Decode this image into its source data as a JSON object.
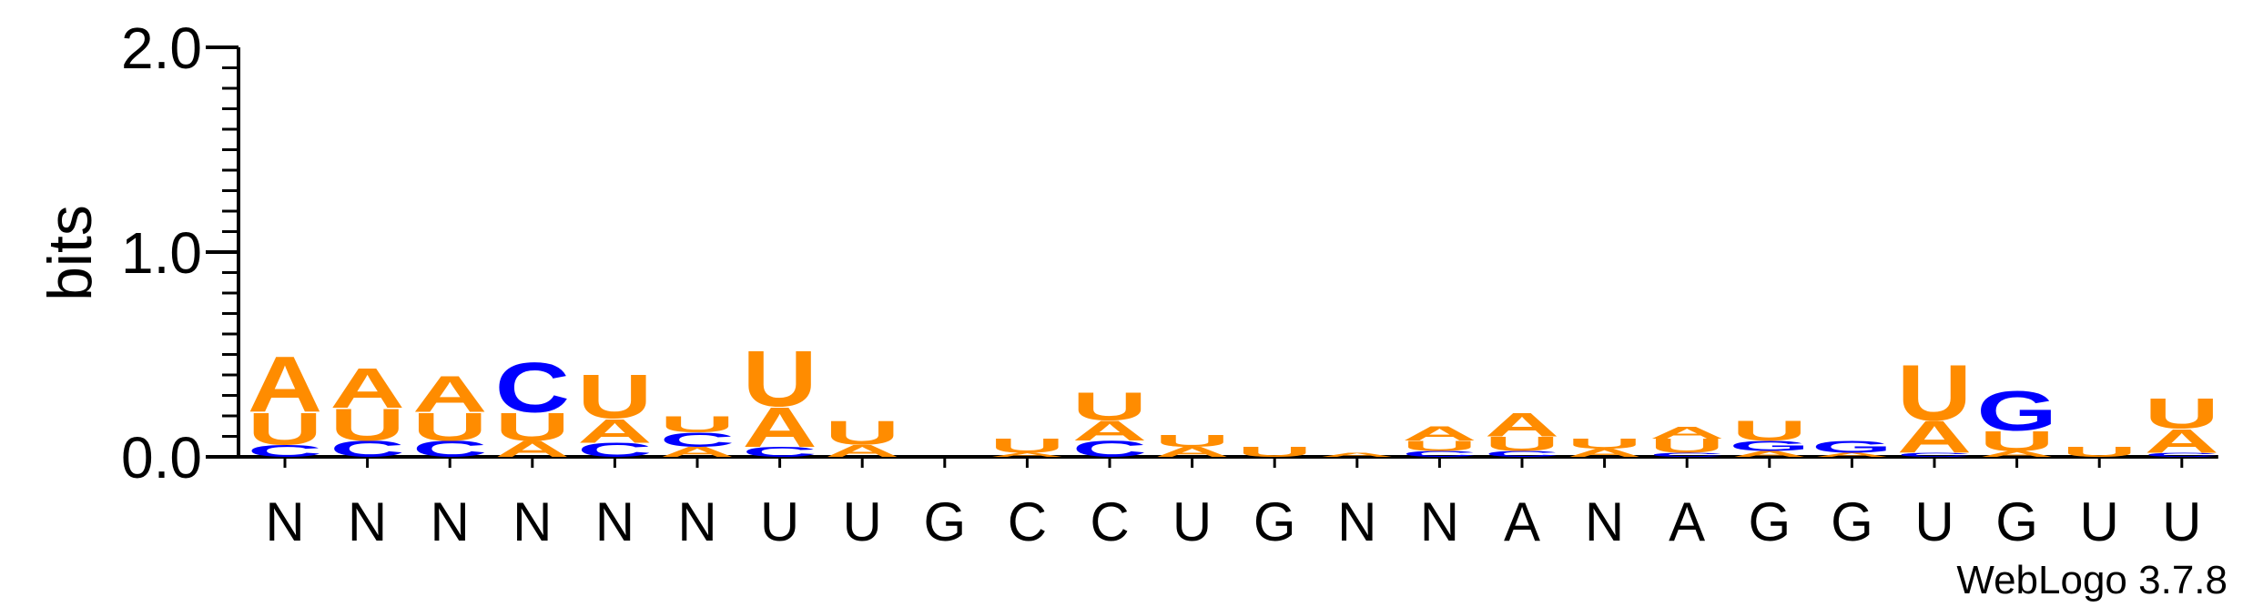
{
  "chart_data": {
    "type": "sequence-logo",
    "ylabel": "bits",
    "ylim": [
      0,
      2.0
    ],
    "yticks": [
      "0.0",
      "1.0",
      "2.0"
    ],
    "yticks_values": [
      0,
      1,
      2
    ],
    "credit": "WebLogo 3.7.8",
    "colors": {
      "A": "#ff8c00",
      "U": "#ff8c00",
      "C": "#0000ff",
      "G": "#0000ff"
    },
    "positions": [
      {
        "consensus": "N",
        "stack": [
          [
            "C",
            0.06
          ],
          [
            "U",
            0.16
          ],
          [
            "A",
            0.28
          ]
        ]
      },
      {
        "consensus": "N",
        "stack": [
          [
            "C",
            0.08
          ],
          [
            "U",
            0.16
          ],
          [
            "A",
            0.2
          ]
        ]
      },
      {
        "consensus": "N",
        "stack": [
          [
            "C",
            0.08
          ],
          [
            "U",
            0.14
          ],
          [
            "A",
            0.18
          ]
        ]
      },
      {
        "consensus": "N",
        "stack": [
          [
            "A",
            0.08
          ],
          [
            "U",
            0.14
          ],
          [
            "C",
            0.25
          ]
        ]
      },
      {
        "consensus": "N",
        "stack": [
          [
            "C",
            0.07
          ],
          [
            "A",
            0.12
          ],
          [
            "U",
            0.22
          ]
        ]
      },
      {
        "consensus": "N",
        "stack": [
          [
            "A",
            0.05
          ],
          [
            "C",
            0.07
          ],
          [
            "U",
            0.08
          ]
        ]
      },
      {
        "consensus": "U",
        "stack": [
          [
            "C",
            0.05
          ],
          [
            "A",
            0.2
          ],
          [
            "U",
            0.28
          ]
        ]
      },
      {
        "consensus": "U",
        "stack": [
          [
            "A",
            0.06
          ],
          [
            "U",
            0.12
          ]
        ]
      },
      {
        "consensus": "G",
        "stack": []
      },
      {
        "consensus": "C",
        "stack": [
          [
            "A",
            0.02
          ],
          [
            "U",
            0.07
          ]
        ]
      },
      {
        "consensus": "C",
        "stack": [
          [
            "C",
            0.08
          ],
          [
            "A",
            0.1
          ],
          [
            "U",
            0.14
          ]
        ]
      },
      {
        "consensus": "U",
        "stack": [
          [
            "A",
            0.05
          ],
          [
            "U",
            0.06
          ]
        ]
      },
      {
        "consensus": "G",
        "stack": [
          [
            "U",
            0.05
          ]
        ]
      },
      {
        "consensus": "N",
        "stack": [
          [
            "A",
            0.02
          ]
        ]
      },
      {
        "consensus": "N",
        "stack": [
          [
            "C",
            0.03
          ],
          [
            "U",
            0.05
          ],
          [
            "A",
            0.07
          ]
        ]
      },
      {
        "consensus": "A",
        "stack": [
          [
            "C",
            0.03
          ],
          [
            "U",
            0.07
          ],
          [
            "A",
            0.12
          ]
        ]
      },
      {
        "consensus": "N",
        "stack": [
          [
            "A",
            0.04
          ],
          [
            "U",
            0.05
          ]
        ]
      },
      {
        "consensus": "A",
        "stack": [
          [
            "C",
            0.02
          ],
          [
            "U",
            0.07
          ],
          [
            "A",
            0.06
          ]
        ]
      },
      {
        "consensus": "G",
        "stack": [
          [
            "A",
            0.03
          ],
          [
            "G",
            0.05
          ],
          [
            "U",
            0.1
          ]
        ]
      },
      {
        "consensus": "G",
        "stack": [
          [
            "A",
            0.02
          ],
          [
            "G",
            0.06
          ]
        ]
      },
      {
        "consensus": "U",
        "stack": [
          [
            "C",
            0.02
          ],
          [
            "A",
            0.16
          ],
          [
            "U",
            0.28
          ]
        ]
      },
      {
        "consensus": "G",
        "stack": [
          [
            "A",
            0.03
          ],
          [
            "U",
            0.1
          ],
          [
            "G",
            0.2
          ]
        ]
      },
      {
        "consensus": "U",
        "stack": [
          [
            "U",
            0.05
          ]
        ]
      },
      {
        "consensus": "U",
        "stack": [
          [
            "C",
            0.02
          ],
          [
            "A",
            0.12
          ],
          [
            "U",
            0.15
          ]
        ]
      }
    ]
  }
}
